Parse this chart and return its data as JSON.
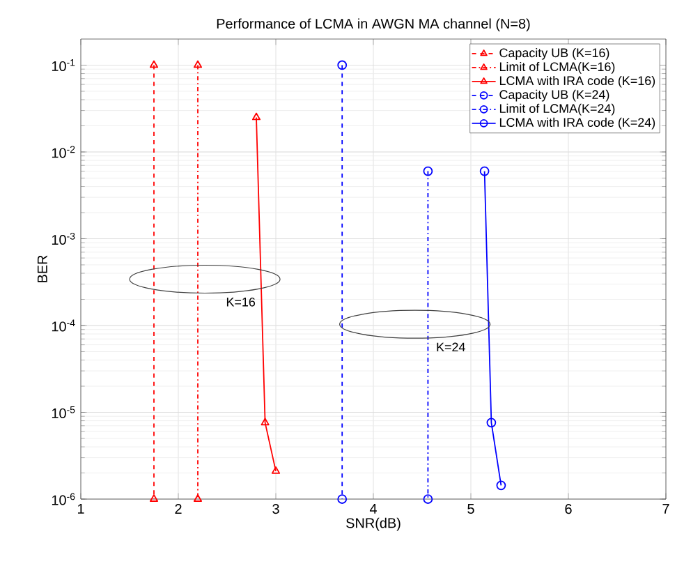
{
  "chart_data": {
    "type": "line",
    "title": "Performance of LCMA in AWGN MA channel (N=8)",
    "xlabel": "SNR(dB)",
    "ylabel": "BER",
    "log": "y",
    "grid": true,
    "legend": "top right",
    "xlim": [
      1,
      7
    ],
    "xticks": [
      1,
      2,
      3,
      4,
      5,
      6,
      7
    ],
    "ylim": [
      1e-06,
      0.2
    ],
    "yticks": [
      {
        "value": 1e-06,
        "label": "10$^{-6}$"
      },
      {
        "value": 1e-05,
        "label": "10$^{-5}$"
      },
      {
        "value": 0.0001,
        "label": "10$^{-4}$"
      },
      {
        "value": 0.001,
        "label": "10$^{-3}$"
      },
      {
        "value": 0.01,
        "label": "10$^{-2}$"
      },
      {
        "value": 0.1,
        "label": "10$^{-1}$"
      }
    ],
    "series": [
      {
        "name": "Capacity UB (K=16)",
        "color": "#ff0000",
        "marker": "triangle",
        "line_style": "dashed",
        "x": [
          1.75,
          1.75
        ],
        "values": [
          0.1,
          1e-06
        ]
      },
      {
        "name": "Limit of LCMA(K=16)",
        "color": "#ff0000",
        "marker": "triangle",
        "line_style": "dashdot",
        "x": [
          2.2,
          2.2
        ],
        "values": [
          0.1,
          1e-06
        ]
      },
      {
        "name": "LCMA with IRA code (K=16)",
        "color": "#ff0000",
        "marker": "triangle",
        "line_style": "solid",
        "x": [
          2.8,
          2.89,
          3.0
        ],
        "values": [
          0.025,
          7.6e-06,
          2.1e-06
        ]
      },
      {
        "name": "Capacity UB (K=24)",
        "color": "#0000ff",
        "marker": "circle",
        "line_style": "dashed",
        "x": [
          3.68,
          3.68
        ],
        "values": [
          0.1,
          1e-06
        ]
      },
      {
        "name": "Limit of LCMA(K=24)",
        "color": "#0000ff",
        "marker": "circle",
        "line_style": "dashdot",
        "x": [
          4.56,
          4.56
        ],
        "values": [
          0.006,
          1e-06
        ]
      },
      {
        "name": "LCMA with IRA code (K=24)",
        "color": "#0000ff",
        "marker": "circle",
        "line_style": "solid",
        "x": [
          5.14,
          5.21,
          5.31
        ],
        "values": [
          0.006,
          7.6e-06,
          1.44e-06
        ]
      }
    ],
    "annotations": [
      "K=16",
      "K=24"
    ]
  }
}
